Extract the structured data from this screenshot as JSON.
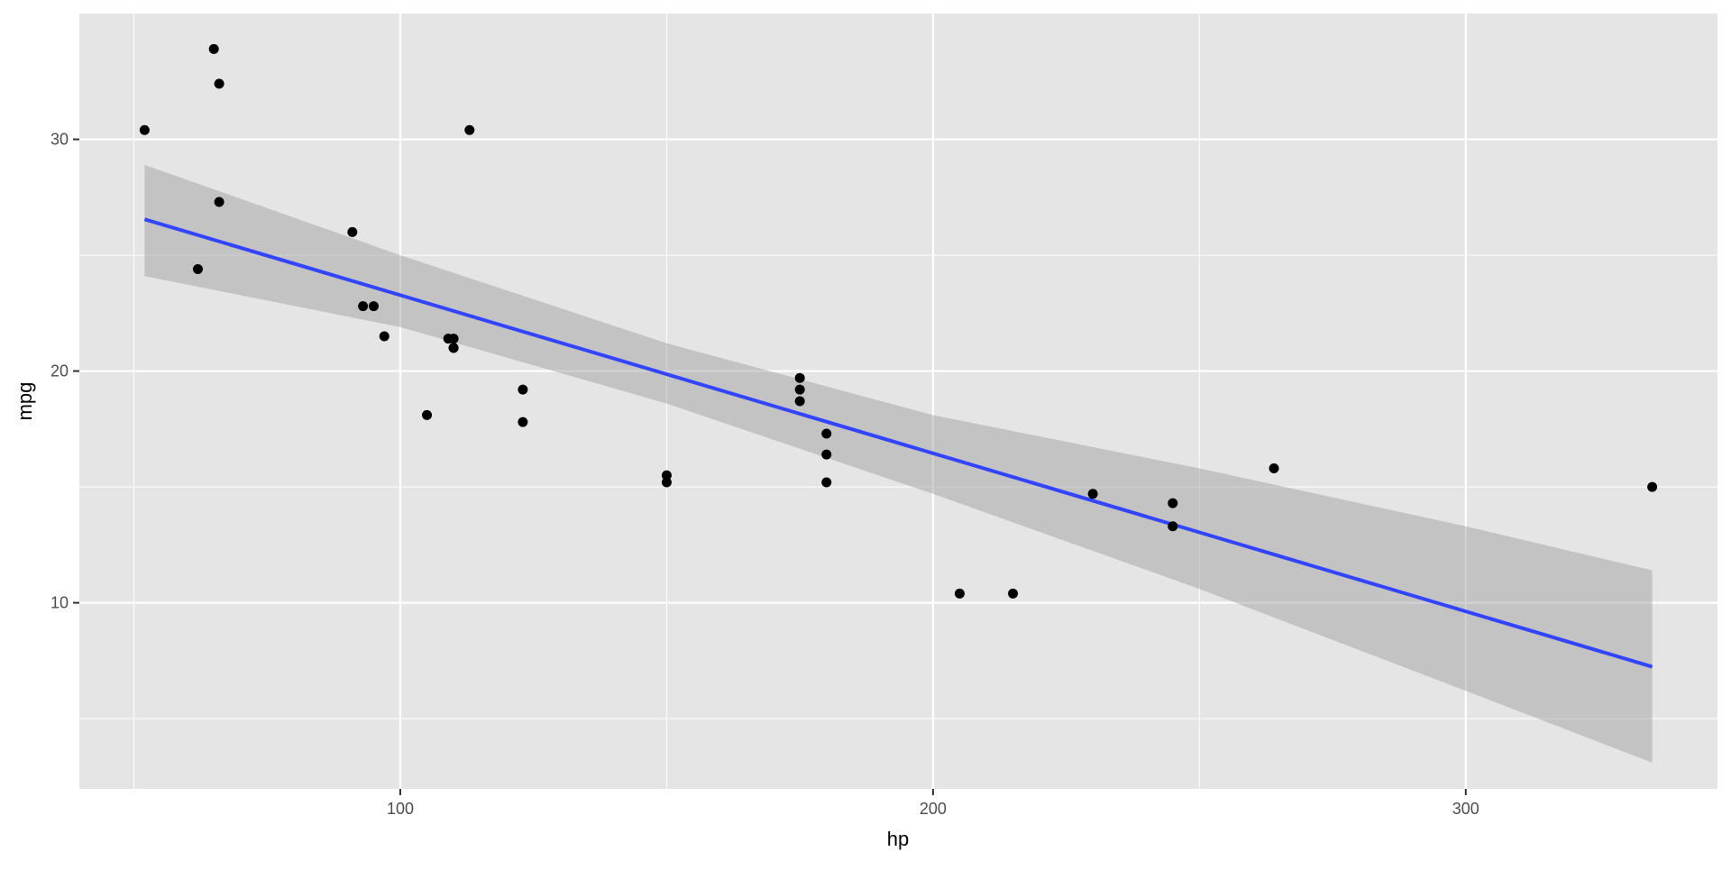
{
  "chart_data": {
    "type": "scatter",
    "title": "",
    "xlabel": "hp",
    "ylabel": "mpg",
    "xlim": [
      39.75,
      347.25
    ],
    "ylim": [
      1.97,
      35.43
    ],
    "x_ticks": [
      100,
      200,
      300
    ],
    "x_minor_ticks": [
      50,
      150,
      250
    ],
    "y_ticks": [
      10,
      20,
      30
    ],
    "y_minor_ticks": [
      5,
      15,
      25
    ],
    "x_tick_labels": [
      "100",
      "200",
      "300"
    ],
    "y_tick_labels": [
      "10",
      "20",
      "30"
    ],
    "grid": true,
    "legend": "none",
    "points": [
      {
        "x": 110,
        "y": 21.0
      },
      {
        "x": 110,
        "y": 21.0
      },
      {
        "x": 93,
        "y": 22.8
      },
      {
        "x": 110,
        "y": 21.4
      },
      {
        "x": 175,
        "y": 18.7
      },
      {
        "x": 105,
        "y": 18.1
      },
      {
        "x": 245,
        "y": 14.3
      },
      {
        "x": 62,
        "y": 24.4
      },
      {
        "x": 95,
        "y": 22.8
      },
      {
        "x": 123,
        "y": 19.2
      },
      {
        "x": 123,
        "y": 17.8
      },
      {
        "x": 180,
        "y": 16.4
      },
      {
        "x": 180,
        "y": 17.3
      },
      {
        "x": 180,
        "y": 15.2
      },
      {
        "x": 205,
        "y": 10.4
      },
      {
        "x": 215,
        "y": 10.4
      },
      {
        "x": 230,
        "y": 14.7
      },
      {
        "x": 66,
        "y": 32.4
      },
      {
        "x": 52,
        "y": 30.4
      },
      {
        "x": 65,
        "y": 33.9
      },
      {
        "x": 97,
        "y": 21.5
      },
      {
        "x": 150,
        "y": 15.5
      },
      {
        "x": 150,
        "y": 15.2
      },
      {
        "x": 245,
        "y": 13.3
      },
      {
        "x": 175,
        "y": 19.2
      },
      {
        "x": 66,
        "y": 27.3
      },
      {
        "x": 91,
        "y": 26.0
      },
      {
        "x": 113,
        "y": 30.4
      },
      {
        "x": 264,
        "y": 15.8
      },
      {
        "x": 175,
        "y": 19.7
      },
      {
        "x": 335,
        "y": 15.0
      },
      {
        "x": 109,
        "y": 21.4
      }
    ],
    "trend_line": {
      "method": "lm",
      "x": [
        52,
        335
      ],
      "y": [
        26.55,
        7.24
      ]
    },
    "confidence_band": {
      "x": [
        52,
        100,
        150,
        200,
        250,
        300,
        335
      ],
      "upper": [
        28.9,
        25.0,
        21.2,
        18.1,
        15.8,
        13.3,
        11.4
      ],
      "lower": [
        24.1,
        21.9,
        18.6,
        14.7,
        10.6,
        6.2,
        3.1
      ]
    },
    "colors": {
      "panel_background": "#e5e5e5",
      "grid": "#ffffff",
      "points": "#000000",
      "line": "#3344ff",
      "band": "#999999",
      "band_opacity": 0.45
    }
  }
}
